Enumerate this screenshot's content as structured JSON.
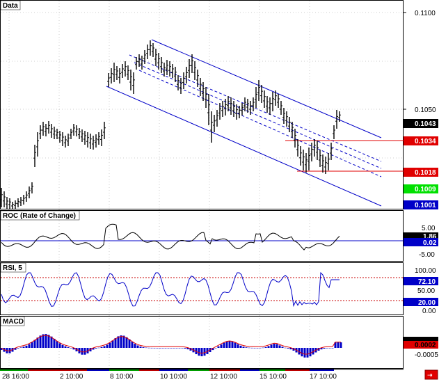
{
  "window": {
    "background": "#ffffff",
    "grid_color": "#c8c8c8"
  },
  "panes": {
    "price": {
      "title": "Data"
    },
    "roc": {
      "title": "ROC (Rate of Change)"
    },
    "rsi": {
      "title": "RSI, 5"
    },
    "macd": {
      "title": "MACD"
    }
  },
  "price_axis": {
    "ticks": [
      "0.1100",
      "0.1050"
    ],
    "badges": [
      {
        "value": "0.1043",
        "bg": "#000000",
        "fg": "#ffffff"
      },
      {
        "value": "0.1034",
        "bg": "#e00000",
        "fg": "#ffffff"
      },
      {
        "value": "0.1018",
        "bg": "#e00000",
        "fg": "#ffffff"
      },
      {
        "value": "0.1009",
        "bg": "#00e000",
        "fg": "#ffffff"
      },
      {
        "value": "0.1001",
        "bg": "#0000c8",
        "fg": "#ffffff"
      }
    ]
  },
  "roc_axis": {
    "ticks": [
      "5.00",
      "-5.00"
    ],
    "badges": [
      {
        "value": "1.86",
        "bg": "#000000",
        "fg": "#ffffff"
      },
      {
        "value": "0.02",
        "bg": "#0000c8",
        "fg": "#ffffff"
      }
    ]
  },
  "rsi_axis": {
    "ticks": [
      "100.00",
      "50.00",
      "0.00"
    ],
    "badges": [
      {
        "value": "72.10",
        "bg": "#0000c8",
        "fg": "#ffffff"
      },
      {
        "value": "20.00",
        "bg": "#0000c8",
        "fg": "#ffffff"
      }
    ]
  },
  "macd_axis": {
    "ticks": [
      "-0.0005"
    ],
    "badges": [
      {
        "value": "0.0002",
        "bg": "#e00000",
        "fg": "#000000"
      }
    ]
  },
  "time_axis": [
    "28 16:00",
    "2 10:00",
    "8 10:00",
    "10 10:00",
    "12 10:00",
    "15 10:00",
    "17 10:00"
  ],
  "colors": {
    "bars": "#000000",
    "channel": "#0000c8",
    "support": "#e00000",
    "roc_line": "#000000",
    "rsi_line": "#0000c8",
    "rsi_levels": "#c80000",
    "macd_hist": "#0000c8",
    "macd_signal": "#e00000",
    "zero_line": "#0000c8"
  }
}
